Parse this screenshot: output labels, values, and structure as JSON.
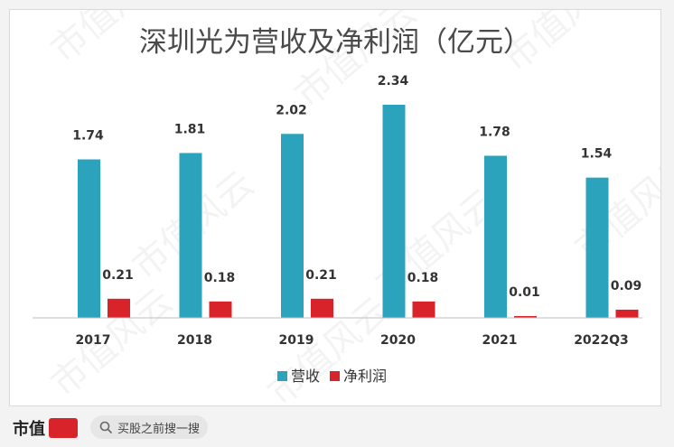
{
  "chart_data": {
    "type": "bar",
    "title": "深圳光为营收及净利润（亿元）",
    "categories": [
      "2017",
      "2018",
      "2019",
      "2020",
      "2021",
      "2022Q3"
    ],
    "series": [
      {
        "name": "营收",
        "color": "#2ba3bd",
        "values": [
          1.74,
          1.81,
          2.02,
          2.34,
          1.78,
          1.54
        ]
      },
      {
        "name": "净利润",
        "color": "#d9232a",
        "values": [
          0.21,
          0.18,
          0.21,
          0.18,
          0.01,
          0.09
        ]
      }
    ],
    "value_labels": [
      [
        "1.74",
        "1.81",
        "2.02",
        "2.34",
        "1.78",
        "1.54"
      ],
      [
        "0.21",
        "0.18",
        "0.21",
        "0.18",
        "0.01",
        "0.09"
      ]
    ],
    "xlabel": "",
    "ylabel": "",
    "ylim": [
      0,
      2.34
    ],
    "legend_position": "bottom-center",
    "grid": false
  },
  "watermark": "市值风云",
  "footer": {
    "brand": "市值",
    "search_placeholder": "买股之前搜一搜"
  }
}
